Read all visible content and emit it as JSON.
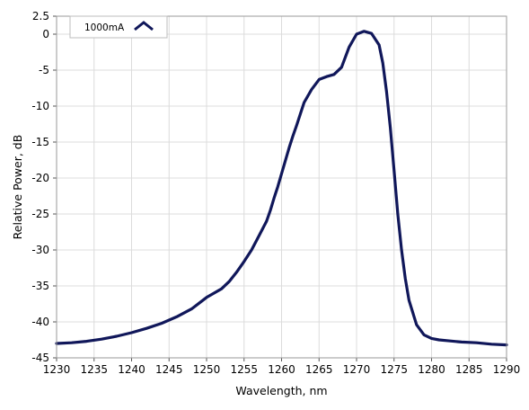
{
  "chart_data": {
    "type": "line",
    "title": "",
    "xlabel": "Wavelength, nm",
    "ylabel": "Relative Power, dB",
    "xlim": [
      1230,
      1290
    ],
    "ylim": [
      -45,
      2.5
    ],
    "x_ticks": [
      1230,
      1235,
      1240,
      1245,
      1250,
      1255,
      1260,
      1265,
      1270,
      1275,
      1280,
      1285,
      1290
    ],
    "y_ticks": [
      2.5,
      0,
      -5,
      -10,
      -15,
      -20,
      -25,
      -30,
      -35,
      -40,
      -45
    ],
    "grid": true,
    "legend": "top-left",
    "series": [
      {
        "name": "1000mA",
        "color": "#10175a",
        "x": [
          1230,
          1232,
          1234,
          1236,
          1238,
          1240,
          1242,
          1244,
          1246,
          1248,
          1249,
          1250,
          1251,
          1252,
          1253,
          1254,
          1255,
          1256,
          1257,
          1258,
          1258.5,
          1259,
          1259.5,
          1260,
          1260.5,
          1261,
          1261.5,
          1262,
          1262.5,
          1263,
          1264,
          1265,
          1266,
          1267,
          1268,
          1269,
          1270,
          1271,
          1272,
          1273,
          1273.5,
          1274,
          1274.5,
          1275,
          1275.5,
          1276,
          1276.5,
          1277,
          1278,
          1279,
          1280,
          1281,
          1282,
          1284,
          1286,
          1288,
          1290
        ],
        "y": [
          -43,
          -42.9,
          -42.7,
          -42.4,
          -42,
          -41.5,
          -40.9,
          -40.2,
          -39.3,
          -38.2,
          -37.4,
          -36.6,
          -36,
          -35.4,
          -34.4,
          -33.1,
          -31.6,
          -30,
          -28,
          -26,
          -24.5,
          -22.8,
          -21.2,
          -19.4,
          -17.6,
          -15.8,
          -14.2,
          -12.7,
          -11.1,
          -9.5,
          -7.7,
          -6.3,
          -5.9,
          -5.6,
          -4.6,
          -1.8,
          0,
          0.4,
          0.1,
          -1.5,
          -4,
          -8,
          -13,
          -19,
          -25,
          -30,
          -34,
          -37,
          -40.4,
          -41.8,
          -42.3,
          -42.5,
          -42.6,
          -42.8,
          -42.9,
          -43.1,
          -43.2
        ]
      }
    ]
  }
}
